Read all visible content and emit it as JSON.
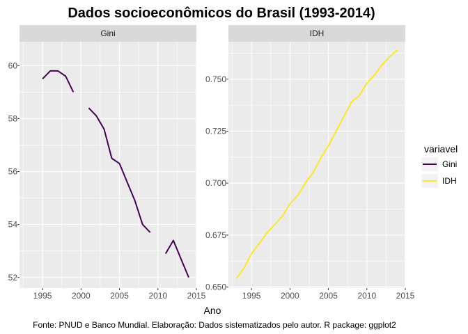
{
  "chart_data": {
    "type": "line",
    "title": "Dados socioeconômicos do Brasil (1993-2014)",
    "xlabel": "Ano",
    "caption": "Fonte: PNUD e Banco Mundial. Elaboração: Dados sistematizados pelo autor. R package: ggplot2",
    "legend": {
      "title": "variavel",
      "position": "right",
      "entries": [
        {
          "label": "Gini",
          "color": "#440154"
        },
        {
          "label": "IDH",
          "color": "#FDE725"
        }
      ]
    },
    "grid": true,
    "facets": [
      {
        "strip": "Gini",
        "color": "#440154",
        "xlim": [
          1992,
          2015
        ],
        "ylim": [
          51.6,
          60.9
        ],
        "xticks": [
          1995,
          2000,
          2005,
          2010,
          2015
        ],
        "xtick_labels": [
          "1995",
          "2000",
          "2005",
          "2010",
          "2015"
        ],
        "yticks": [
          52,
          54,
          56,
          58,
          60
        ],
        "ytick_labels": [
          "52",
          "54",
          "56",
          "58",
          "60"
        ],
        "series": [
          {
            "name": "Gini",
            "x": [
              1995,
              1996,
              1997,
              1998,
              1999,
              2000,
              2001,
              2002,
              2003,
              2004,
              2005,
              2006,
              2007,
              2008,
              2009,
              2010,
              2011,
              2012,
              2013,
              2014
            ],
            "y": [
              59.5,
              59.8,
              59.8,
              59.6,
              59.0,
              null,
              58.4,
              58.1,
              57.6,
              56.5,
              56.3,
              55.6,
              54.9,
              54.0,
              53.7,
              null,
              52.9,
              53.4,
              52.7,
              52.0
            ]
          }
        ]
      },
      {
        "strip": "IDH",
        "color": "#FDE725",
        "xlim": [
          1992,
          2015
        ],
        "ylim": [
          0.6495,
          0.768
        ],
        "xticks": [
          1995,
          2000,
          2005,
          2010,
          2015
        ],
        "xtick_labels": [
          "1995",
          "2000",
          "2005",
          "2010",
          "2015"
        ],
        "yticks": [
          0.65,
          0.675,
          0.7,
          0.725,
          0.75
        ],
        "ytick_labels": [
          "0.650",
          "0.675",
          "0.700",
          "0.725",
          "0.750"
        ],
        "series": [
          {
            "name": "IDH",
            "x": [
              1993,
              1994,
              1995,
              1996,
              1997,
              1998,
              1999,
              2000,
              2001,
              2002,
              2003,
              2004,
              2005,
              2006,
              2007,
              2008,
              2009,
              2010,
              2011,
              2012,
              2013,
              2014
            ],
            "y": [
              0.654,
              0.659,
              0.666,
              0.671,
              0.676,
              0.68,
              0.684,
              0.69,
              0.694,
              0.7,
              0.705,
              0.712,
              0.718,
              0.725,
              0.732,
              0.739,
              0.742,
              0.748,
              0.752,
              0.757,
              0.761,
              0.764
            ]
          }
        ]
      }
    ]
  }
}
